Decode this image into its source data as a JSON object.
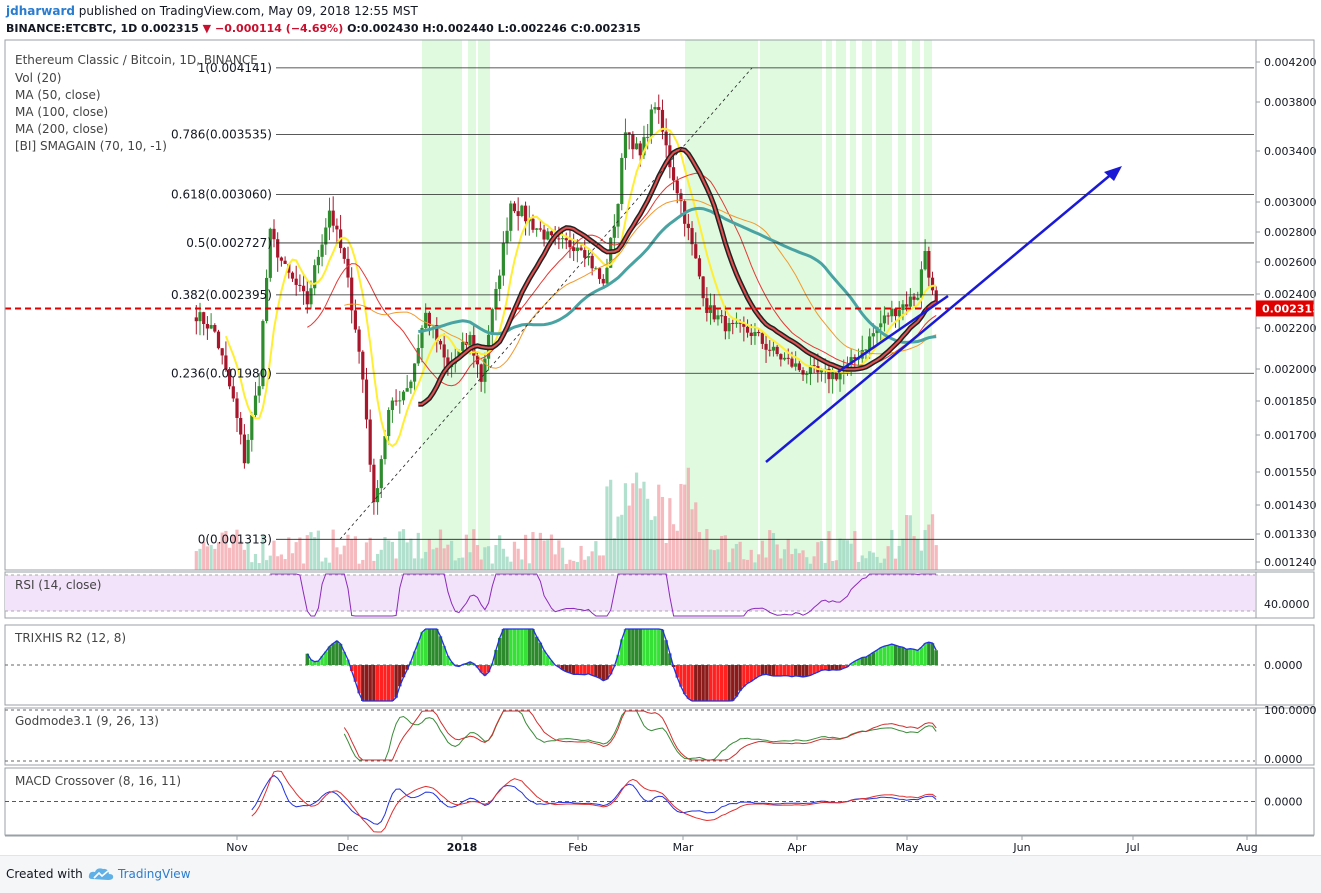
{
  "header": {
    "user": "jdharward",
    "published": "published on TradingView.com, May 09, 2018 12:55 MST",
    "symbol_line": "BINANCE:ETCBTC, 1D 0.002315",
    "change": "−0.000114 (−4.69%)",
    "ohlc": "O:0.002430 H:0.002440 L:0.002246 C:0.002315"
  },
  "legend": {
    "title": "Ethereum Classic / Bitcoin, 1D, BINANCE",
    "items": [
      "Vol (20)",
      "MA (50, close)",
      "MA (100, close)",
      "MA (200, close)",
      "[BI] SMAGAIN (70, 10, -1)"
    ]
  },
  "panes": {
    "rsi": "RSI (14, close)",
    "trix": "TRIXHIS R2 (12, 8)",
    "godmode": "Godmode3.1 (9, 26, 13)",
    "macd": "MACD Crossover (8, 16, 11)"
  },
  "footer": {
    "created": "Created with",
    "brand": "TradingView"
  },
  "colors": {
    "up": "#2e8b2e",
    "down": "#a8162b",
    "ma50": "#e53935",
    "ma100": "#f29a2e",
    "ma200": "#4aa3a3",
    "smagain": "#ffee33",
    "highlight": "#b8f5b8",
    "trend": "#1a1ad6",
    "price_line": "#e00000",
    "rsi_band": "#f3e3fa",
    "rsi_line": "#8b2bbd"
  },
  "chart_data": {
    "type": "candlestick",
    "title": "Ethereum Classic / Bitcoin, 1D, BINANCE",
    "price_axis_ticks": [
      0.0042,
      0.0038,
      0.0034,
      0.003,
      0.0028,
      0.0026,
      0.0024,
      0.0022,
      0.002,
      0.00185,
      0.0017,
      0.00155,
      0.00143,
      0.00133,
      0.00124
    ],
    "price_axis_labels": [
      "0.004200",
      "0.003800",
      "0.003400",
      "0.003000",
      "0.002800",
      "0.002600",
      "0.002400",
      "0.002200",
      "0.002000",
      "0.001850",
      "0.001700",
      "0.001550",
      "0.001430",
      "0.001330",
      "0.001240"
    ],
    "current_price_label": "0.002315",
    "time_labels": [
      "Nov",
      "Dec",
      "2018",
      "Feb",
      "Mar",
      "Apr",
      "May",
      "Jun",
      "Jul",
      "Aug"
    ],
    "fib_levels": [
      {
        "label": "1(0.004141)",
        "value": 0.004141
      },
      {
        "label": "0.786(0.003535)",
        "value": 0.003535
      },
      {
        "label": "0.618(0.003060)",
        "value": 0.00306
      },
      {
        "label": "0.5(0.002727)",
        "value": 0.002727
      },
      {
        "label": "0.382(0.002395)",
        "value": 0.002395
      },
      {
        "label": "0.236(0.001980)",
        "value": 0.00198
      },
      {
        "label": "0(0.001313)",
        "value": 0.001313
      }
    ],
    "close_path": [
      [
        "2017-10-21",
        0.00228
      ],
      [
        "2017-10-26",
        0.00218
      ],
      [
        "2017-10-31",
        0.00185
      ],
      [
        "2017-11-03",
        0.0016
      ],
      [
        "2017-11-07",
        0.00195
      ],
      [
        "2017-11-10",
        0.00278
      ],
      [
        "2017-11-14",
        0.00255
      ],
      [
        "2017-11-20",
        0.00235
      ],
      [
        "2017-11-26",
        0.00295
      ],
      [
        "2017-11-30",
        0.0026
      ],
      [
        "2017-12-05",
        0.00195
      ],
      [
        "2017-12-08",
        0.00142
      ],
      [
        "2017-12-12",
        0.0018
      ],
      [
        "2017-12-18",
        0.00195
      ],
      [
        "2017-12-22",
        0.00228
      ],
      [
        "2017-12-28",
        0.002
      ],
      [
        "2018-01-03",
        0.00215
      ],
      [
        "2018-01-06",
        0.00195
      ],
      [
        "2018-01-10",
        0.0024
      ],
      [
        "2018-01-14",
        0.003
      ],
      [
        "2018-01-20",
        0.00285
      ],
      [
        "2018-01-26",
        0.00272
      ],
      [
        "2018-02-02",
        0.00272
      ],
      [
        "2018-02-08",
        0.00245
      ],
      [
        "2018-02-12",
        0.003
      ],
      [
        "2018-02-14",
        0.0036
      ],
      [
        "2018-02-18",
        0.00335
      ],
      [
        "2018-02-22",
        0.0038
      ],
      [
        "2018-02-26",
        0.0033
      ],
      [
        "2018-03-01",
        0.003
      ],
      [
        "2018-03-04",
        0.0027
      ],
      [
        "2018-03-08",
        0.00232
      ],
      [
        "2018-03-14",
        0.0022
      ],
      [
        "2018-03-20",
        0.00218
      ],
      [
        "2018-03-26",
        0.00208
      ],
      [
        "2018-04-02",
        0.002
      ],
      [
        "2018-04-08",
        0.00197
      ],
      [
        "2018-04-14",
        0.00198
      ],
      [
        "2018-04-20",
        0.00212
      ],
      [
        "2018-04-26",
        0.00228
      ],
      [
        "2018-05-01",
        0.00235
      ],
      [
        "2018-05-04",
        0.0024
      ],
      [
        "2018-05-06",
        0.00268
      ],
      [
        "2018-05-08",
        0.0024
      ],
      [
        "2018-05-09",
        0.002315
      ]
    ],
    "sub_indicator_labels": {
      "rsi": "40.0000",
      "trix": "0.0000",
      "godmode_top": "100.0000",
      "godmode_bottom": "0.0000",
      "macd": "0.0000"
    }
  }
}
